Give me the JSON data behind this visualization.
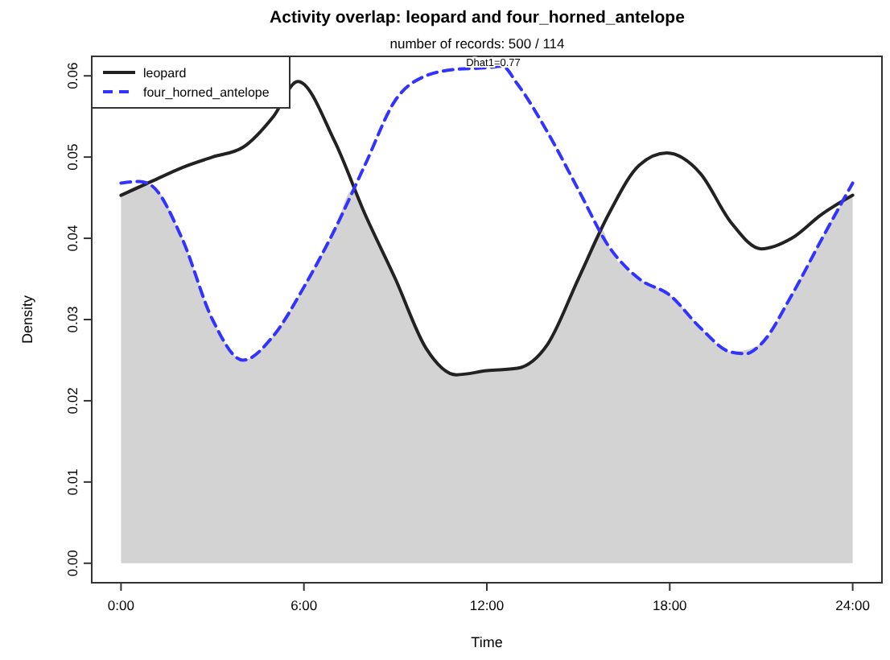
{
  "chart_data": {
    "type": "line",
    "title": "Activity overlap:  leopard and four_horned_antelope",
    "subtitle": "number of records: 500 / 114",
    "xlabel": "Time",
    "ylabel": "Density",
    "annotations": [
      "Dhat1=0.77"
    ],
    "xlim": [
      -0.96,
      24.96
    ],
    "ylim": [
      -0.0024,
      0.0624
    ],
    "xticks": [
      {
        "value": 0,
        "label": "0:00"
      },
      {
        "value": 6,
        "label": "6:00"
      },
      {
        "value": 12,
        "label": "12:00"
      },
      {
        "value": 18,
        "label": "18:00"
      },
      {
        "value": 24,
        "label": "24:00"
      }
    ],
    "yticks": [
      {
        "value": 0,
        "label": "0.00"
      },
      {
        "value": 0.01,
        "label": "0.01"
      },
      {
        "value": 0.02,
        "label": "0.02"
      },
      {
        "value": 0.03,
        "label": "0.03"
      },
      {
        "value": 0.04,
        "label": "0.04"
      },
      {
        "value": 0.05,
        "label": "0.05"
      },
      {
        "value": 0.06,
        "label": "0.06"
      }
    ],
    "grid": false,
    "legend": "top left",
    "series": [
      {
        "type": "area",
        "color": "#d3d3d3",
        "x": [
          0,
          0.7,
          1,
          2,
          3,
          4,
          5,
          6,
          7,
          7.6,
          8,
          9,
          10,
          11,
          12,
          13,
          14,
          15,
          15.8,
          16,
          17,
          18,
          19,
          20,
          21,
          22,
          23,
          23.5,
          24
        ],
        "values": [
          0.0453,
          0.0466,
          0.0465,
          0.04,
          0.03,
          0.025,
          0.028,
          0.034,
          0.041,
          0.046,
          0.043,
          0.035,
          0.0265,
          0.0232,
          0.0237,
          0.024,
          0.027,
          0.035,
          0.041,
          0.039,
          0.035,
          0.033,
          0.029,
          0.026,
          0.027,
          0.033,
          0.04,
          0.0435,
          0.0453
        ]
      },
      {
        "name": "leopard",
        "color": "#222222",
        "line_style": "solid",
        "x": [
          0,
          1,
          2,
          3,
          4,
          5,
          5.8,
          7,
          8,
          9,
          10,
          11,
          12,
          13,
          14,
          15,
          16,
          17,
          17.9,
          19,
          20,
          21,
          22,
          23,
          24
        ],
        "values": [
          0.0453,
          0.047,
          0.0487,
          0.05,
          0.0512,
          0.055,
          0.0593,
          0.052,
          0.043,
          0.035,
          0.0265,
          0.0232,
          0.0237,
          0.024,
          0.027,
          0.035,
          0.043,
          0.049,
          0.0505,
          0.048,
          0.042,
          0.0387,
          0.04,
          0.043,
          0.0453
        ]
      },
      {
        "name": "four_horned_antelope",
        "color": "#3333ff",
        "line_style": "dashed",
        "x": [
          0,
          0.6,
          1,
          2,
          3,
          4,
          5,
          6,
          7,
          8,
          9,
          10,
          11,
          12,
          12.5,
          13,
          14,
          15,
          16,
          17,
          18,
          19,
          20,
          20.5,
          21,
          22,
          23,
          24
        ],
        "values": [
          0.0468,
          0.047,
          0.0465,
          0.04,
          0.03,
          0.025,
          0.028,
          0.034,
          0.041,
          0.049,
          0.057,
          0.06,
          0.0608,
          0.061,
          0.0612,
          0.059,
          0.053,
          0.046,
          0.039,
          0.035,
          0.033,
          0.029,
          0.026,
          0.0258,
          0.027,
          0.033,
          0.04,
          0.0468
        ]
      }
    ]
  }
}
